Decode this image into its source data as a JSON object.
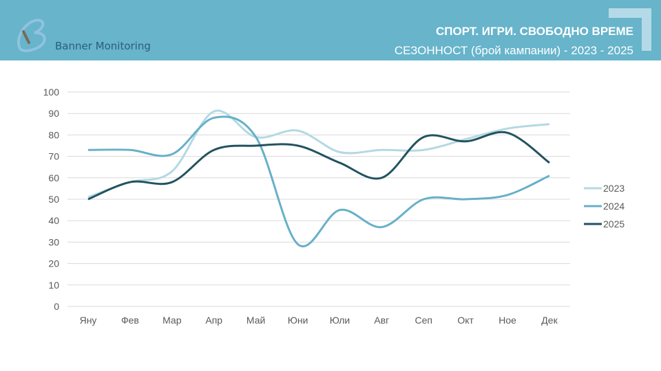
{
  "header": {
    "brand": "Banner Monitoring",
    "title": "СПОРТ. ИГРИ. СВОБОДНО ВРЕМЕ",
    "subtitle": "СЕЗОННОСТ (брой кампании) - 2023 - 2025"
  },
  "chart_data": {
    "type": "line",
    "title": "СЕЗОННОСТ (брой кампании) - 2023 - 2025",
    "categories": [
      "Яну",
      "Фев",
      "Мар",
      "Апр",
      "Май",
      "Юни",
      "Юли",
      "Авг",
      "Сеп",
      "Окт",
      "Ное",
      "Дек"
    ],
    "ylim": [
      0,
      100
    ],
    "yticks": [
      "0",
      "10",
      "20",
      "30",
      "40",
      "50",
      "60",
      "70",
      "80",
      "90",
      "100"
    ],
    "grid": true,
    "legend_position": "right",
    "series": [
      {
        "name": "2023",
        "color": "#b3d9e3",
        "values": [
          51,
          58,
          63,
          91,
          79,
          82,
          72,
          73,
          73,
          78,
          83,
          85
        ]
      },
      {
        "name": "2024",
        "color": "#67b0c8",
        "values": [
          73,
          73,
          71,
          88,
          79,
          29,
          45,
          37,
          50,
          50,
          52,
          61
        ]
      },
      {
        "name": "2025",
        "color": "#23525f",
        "values": [
          50,
          58,
          58,
          73,
          75,
          75,
          67,
          60,
          79,
          77,
          81,
          67
        ]
      }
    ]
  }
}
